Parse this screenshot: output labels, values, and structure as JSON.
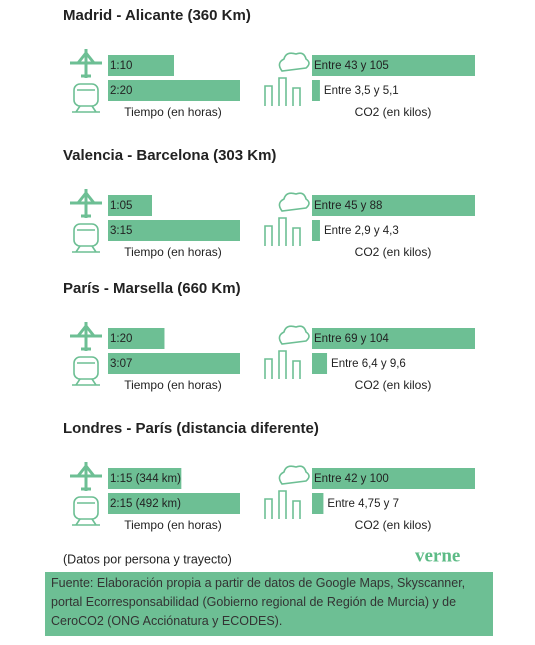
{
  "chart_data": [
    {
      "type": "bar",
      "title": "Madrid - Alicante (360 Km)",
      "color": "#6dbf94",
      "panels": [
        {
          "xlabel": "Tiempo (en horas)",
          "values": [
            70,
            140
          ],
          "value_labels": [
            "1:10",
            "2:20"
          ],
          "xlim": [
            0,
            140
          ]
        },
        {
          "xlabel": "CO2 (en kilos)",
          "values": [
            105,
            5.1
          ],
          "value_labels": [
            "Entre 43 y 105",
            "Entre 3,5 y 5,1"
          ],
          "xlim": [
            0,
            105
          ]
        }
      ]
    },
    {
      "type": "bar",
      "title": "Valencia - Barcelona (303 Km)",
      "color": "#6dbf94",
      "panels": [
        {
          "xlabel": "Tiempo (en horas)",
          "values": [
            65,
            195
          ],
          "value_labels": [
            "1:05",
            "3:15"
          ],
          "xlim": [
            0,
            195
          ]
        },
        {
          "xlabel": "CO2 (en kilos)",
          "values": [
            88,
            4.3
          ],
          "value_labels": [
            "Entre 45 y 88",
            "Entre 2,9 y 4,3"
          ],
          "xlim": [
            0,
            88
          ]
        }
      ]
    },
    {
      "type": "bar",
      "title": "París - Marsella (660 Km)",
      "color": "#6dbf94",
      "panels": [
        {
          "xlabel": "Tiempo (en horas)",
          "values": [
            80,
            187
          ],
          "value_labels": [
            "1:20",
            "3:07"
          ],
          "xlim": [
            0,
            187
          ]
        },
        {
          "xlabel": "CO2 (en kilos)",
          "values": [
            104,
            9.6
          ],
          "value_labels": [
            "Entre 69 y 104",
            "Entre 6,4 y 9,6"
          ],
          "xlim": [
            0,
            104
          ]
        }
      ]
    },
    {
      "type": "bar",
      "title": "Londres - París (distancia diferente)",
      "color": "#6dbf94",
      "panels": [
        {
          "xlabel": "Tiempo (en horas)",
          "values": [
            75,
            135
          ],
          "value_labels": [
            "1:15 (344 km)",
            "2:15 (492 km)"
          ],
          "xlim": [
            0,
            135
          ]
        },
        {
          "xlabel": "CO2 (en kilos)",
          "values": [
            100,
            7
          ],
          "value_labels": [
            "Entre 42 y 100",
            "Entre 4,75 y 7"
          ],
          "xlim": [
            0,
            100
          ]
        }
      ]
    }
  ],
  "note": "(Datos por persona y trayecto)",
  "logo": "verne",
  "source": "Fuente: Elaboración propia a partir de datos de Google Maps, Skyscanner, portal Ecorresponsabilidad (Gobierno regional de Región de Murcia) y de CeroCO2 (ONG Acciónatura y ECODES)."
}
